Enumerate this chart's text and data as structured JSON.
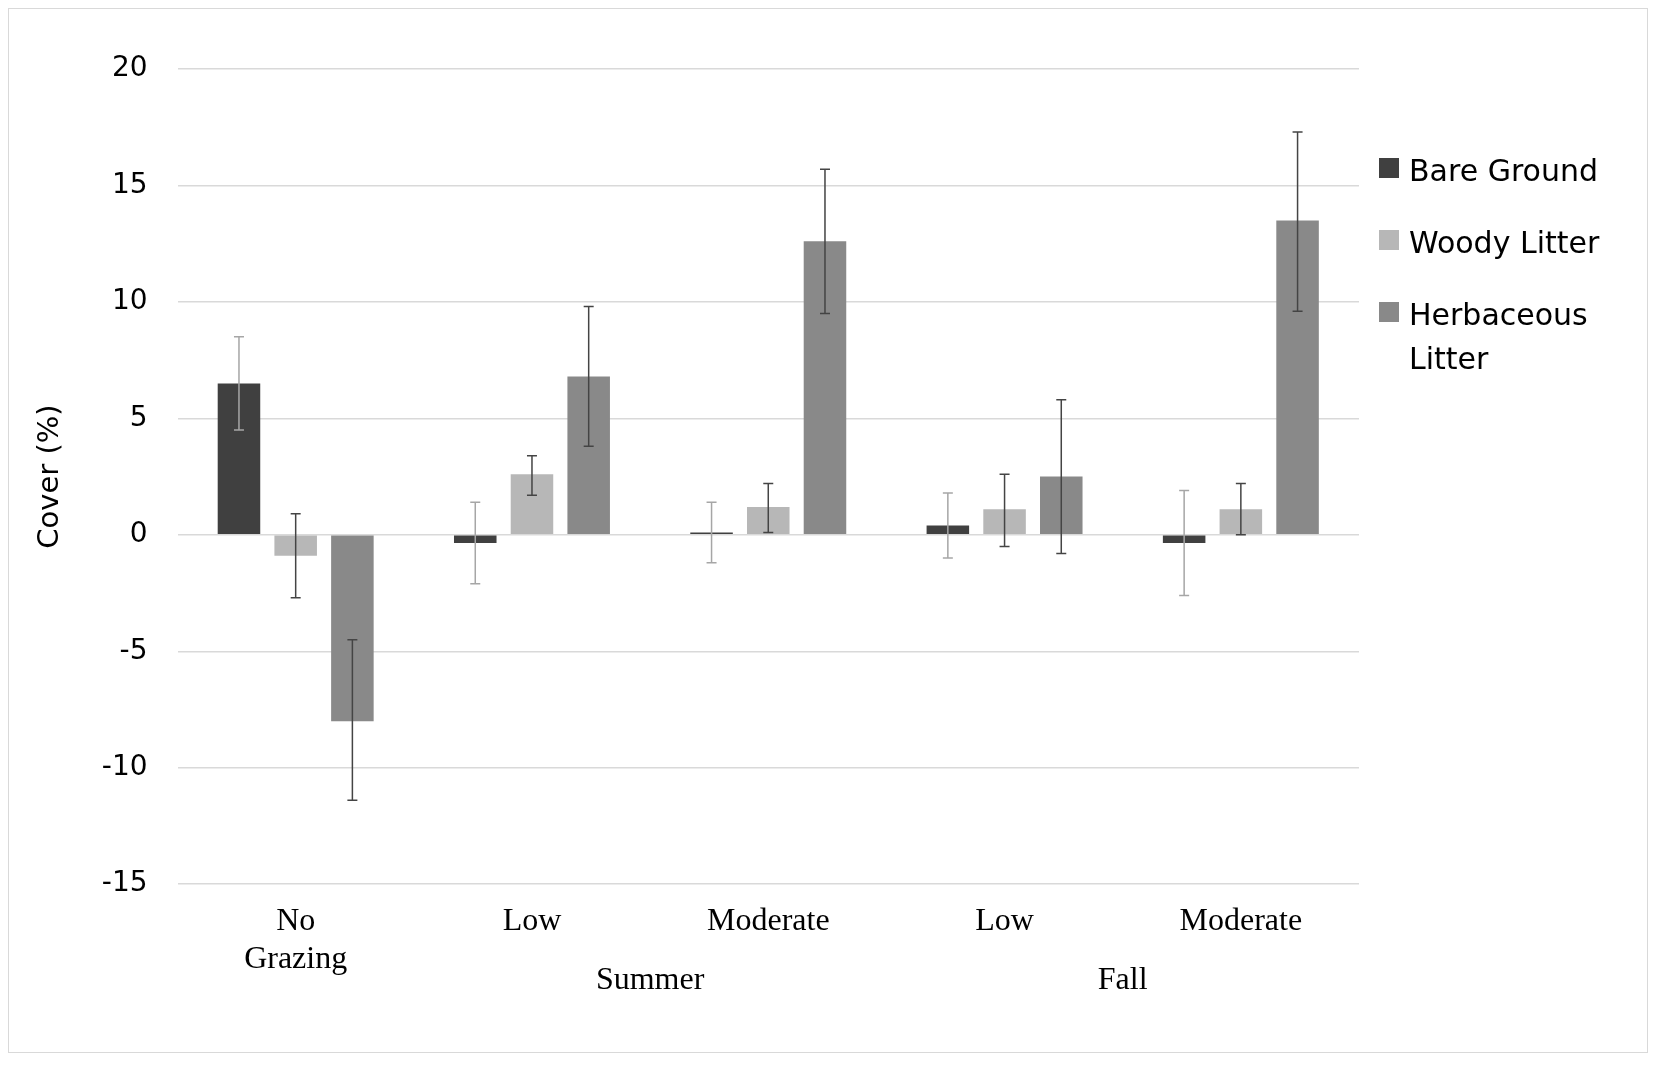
{
  "chart_data": {
    "type": "bar",
    "ylabel": "Cover (%)",
    "categories": [
      "No Grazing",
      "Low",
      "Moderate",
      "Low",
      "Moderate"
    ],
    "series": [
      {
        "name": "Bare Ground",
        "color": "#404040",
        "values": [
          6.5,
          -0.35,
          0.1,
          0.4,
          -0.35
        ],
        "errors": [
          [
            4.5,
            8.5
          ],
          [
            -2.1,
            1.4
          ],
          [
            -1.2,
            1.4
          ],
          [
            -1,
            1.8
          ],
          [
            -2.6,
            1.9
          ]
        ]
      },
      {
        "name": "Woody Litter",
        "color": "#b7b7b7",
        "values": [
          -0.9,
          2.6,
          1.2,
          1.1,
          1.1
        ],
        "errors": [
          [
            -2.7,
            0.9
          ],
          [
            1.7,
            3.4
          ],
          [
            0.1,
            2.2
          ],
          [
            -0.5,
            2.6
          ],
          [
            0,
            2.2
          ]
        ]
      },
      {
        "name": "Herbaceous Litter",
        "color": "#898989",
        "values": [
          -8,
          6.8,
          12.6,
          2.5,
          13.5
        ],
        "errors": [
          [
            -11.4,
            -4.5
          ],
          [
            3.8,
            9.8
          ],
          [
            9.5,
            15.7
          ],
          [
            -0.8,
            5.8
          ],
          [
            9.6,
            17.3
          ]
        ]
      }
    ],
    "annotations": [
      "Summer",
      "Fall"
    ],
    "ylim": [
      -15,
      20
    ],
    "yticks": [
      -15,
      -10,
      -5,
      0,
      5,
      10,
      15,
      20
    ],
    "grid": "y",
    "legend": "right"
  }
}
